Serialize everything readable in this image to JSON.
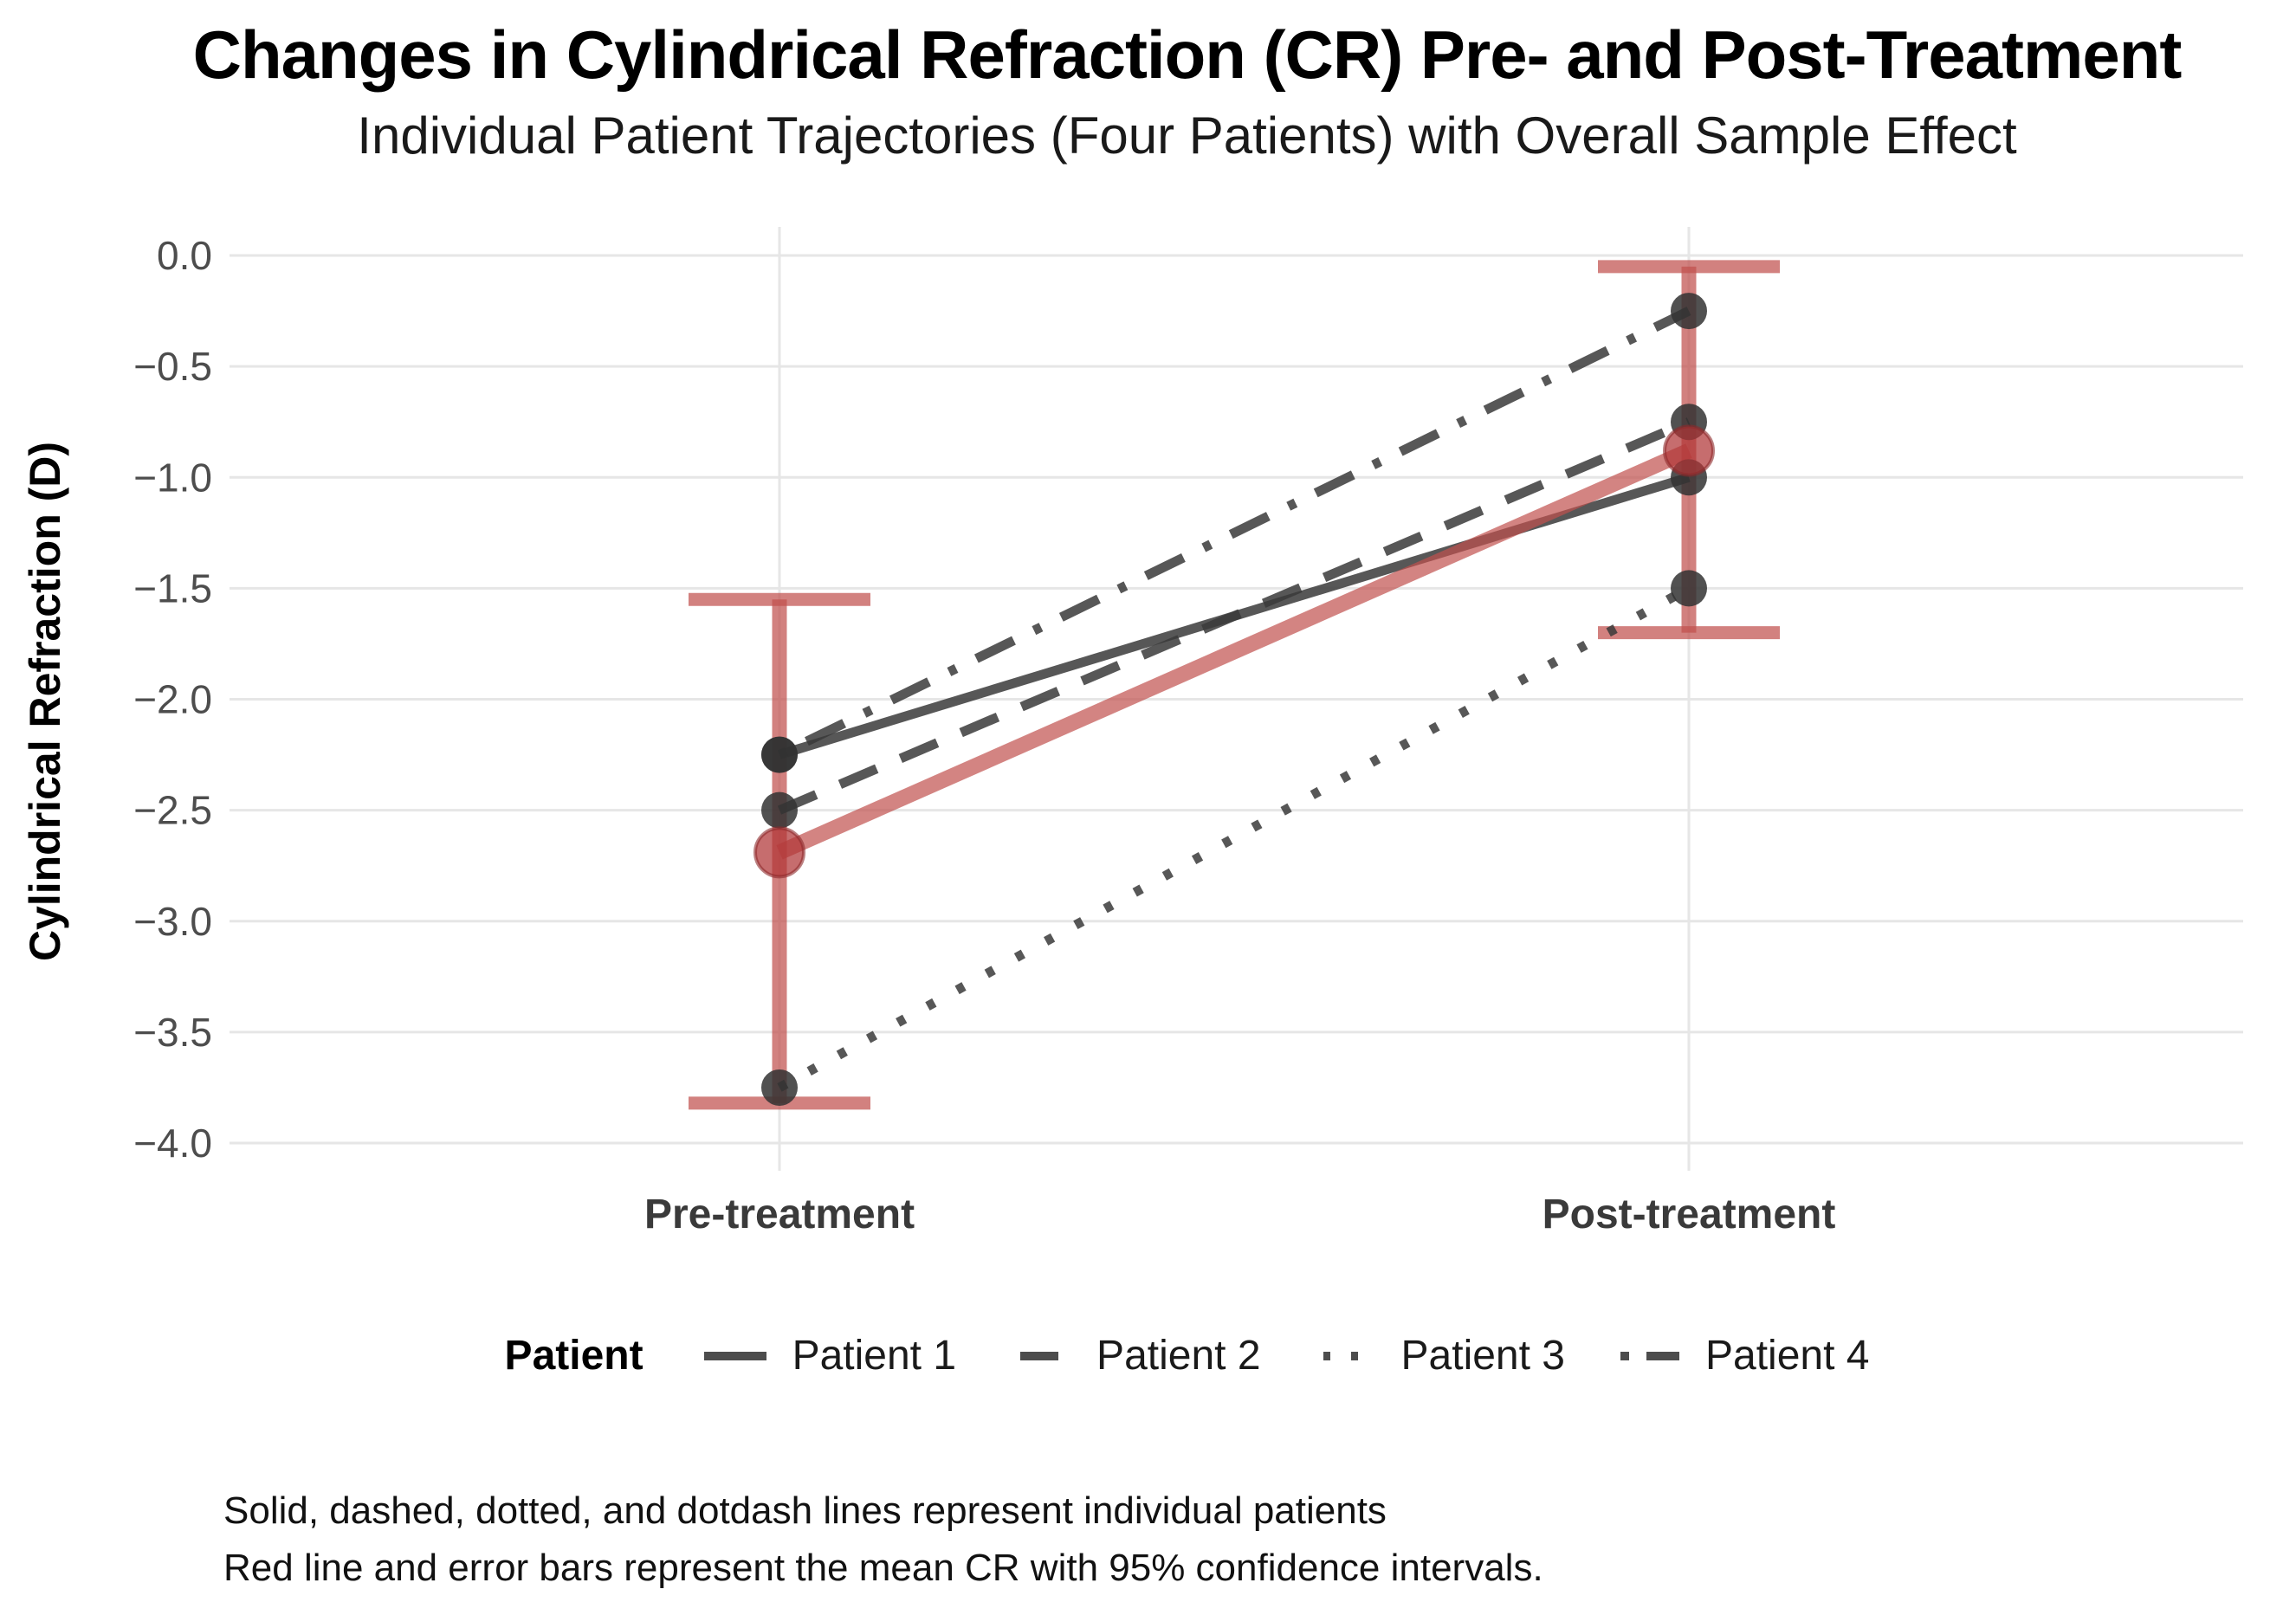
{
  "chart_data": {
    "type": "line",
    "title": "Changes in Cylindrical Refraction (CR) Pre- and Post-Treatment",
    "subtitle": "Individual Patient Trajectories (Four Patients) with Overall Sample Effect",
    "ylabel": "Cylindrical Refraction (D)",
    "xlabel": "",
    "categories": [
      "Pre-treatment",
      "Post-treatment"
    ],
    "ylim": [
      -4.0,
      0.0
    ],
    "yticks": [
      0.0,
      -0.5,
      -1.0,
      -1.5,
      -2.0,
      -2.5,
      -3.0,
      -3.5,
      -4.0
    ],
    "ytick_labels": [
      "0.0",
      "−0.5",
      "−1.0",
      "−1.5",
      "−2.0",
      "−2.5",
      "−3.0",
      "−3.5",
      "−4.0"
    ],
    "grid": true,
    "legend": {
      "title": "Patient",
      "position": "bottom"
    },
    "series": [
      {
        "name": "Patient 1",
        "style": "solid",
        "values": [
          -2.25,
          -1.0
        ]
      },
      {
        "name": "Patient 2",
        "style": "dashed",
        "values": [
          -2.5,
          -0.75
        ]
      },
      {
        "name": "Patient 3",
        "style": "dotted",
        "values": [
          -3.75,
          -1.5
        ]
      },
      {
        "name": "Patient 4",
        "style": "dotdash",
        "values": [
          -2.25,
          -0.25
        ]
      }
    ],
    "mean_series": {
      "name": "Mean CR (95% CI)",
      "values": [
        -2.69,
        -0.88
      ],
      "ci_low": [
        -3.82,
        -1.7
      ],
      "ci_high": [
        -1.55,
        -0.05
      ]
    },
    "caption": [
      "Solid, dashed, dotted, and dotdash lines represent individual patients",
      "Red line and error bars represent the mean CR with 95% confidence intervals."
    ],
    "colors": {
      "patient_line": "#3a3a3a",
      "patient_point": "#333333",
      "mean_line": "#c0504d",
      "mean_point_fill": "#b03436",
      "mean_point_stroke": "#8e2a2c",
      "grid": "#e6e6e6",
      "tick_label": "#4d4d4d",
      "axis_label": "#3a3a3a",
      "title": "#000000"
    }
  }
}
